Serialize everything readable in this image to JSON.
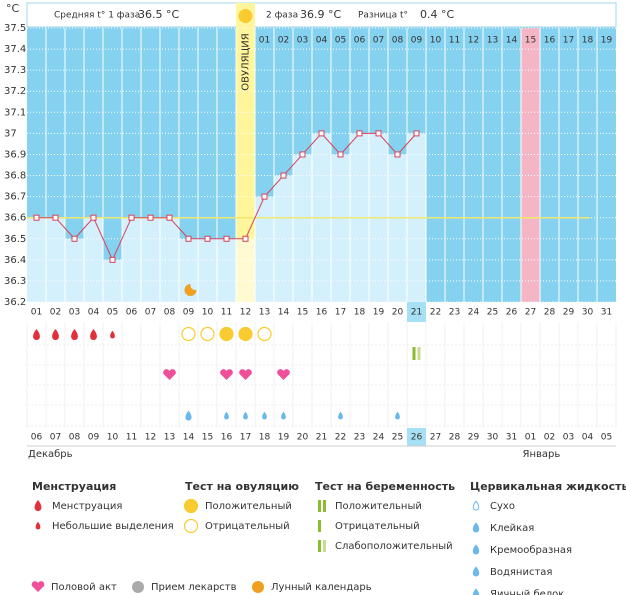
{
  "chart_data": {
    "type": "line",
    "y_unit": "°C",
    "header": {
      "phase1_label": "Средняя t° 1 фаза",
      "phase1_value": "36.5 °C",
      "ovulation_label": "ОВУЛЯЦИЯ",
      "phase2_label": "2 фаза",
      "phase2_value": "36.9 °C",
      "diff_label": "Разница t°",
      "diff_value": "0.4 °C"
    },
    "post_ovulation_days": [
      "01",
      "02",
      "03",
      "04",
      "05",
      "06",
      "07",
      "08",
      "09",
      "10",
      "11",
      "12",
      "13",
      "14",
      "15",
      "16",
      "17",
      "18",
      "19"
    ],
    "categories": [
      "01",
      "02",
      "03",
      "04",
      "05",
      "06",
      "07",
      "08",
      "09",
      "10",
      "11",
      "12",
      "13",
      "14",
      "15",
      "16",
      "17",
      "18",
      "19",
      "20",
      "21",
      "22",
      "23",
      "24",
      "25",
      "26",
      "27",
      "28",
      "29",
      "30",
      "31"
    ],
    "dates": [
      "06",
      "07",
      "08",
      "09",
      "10",
      "11",
      "12",
      "13",
      "14",
      "15",
      "16",
      "17",
      "18",
      "19",
      "20",
      "21",
      "22",
      "23",
      "24",
      "25",
      "26",
      "27",
      "28",
      "29",
      "30",
      "31",
      "01",
      "02",
      "03",
      "04",
      "05"
    ],
    "months": [
      "Декабрь",
      "Январь"
    ],
    "series": [
      {
        "color": "#d8405a",
        "values": [
          36.6,
          36.6,
          36.5,
          36.6,
          36.4,
          36.6,
          36.6,
          36.6,
          36.5,
          36.5,
          36.5,
          36.5,
          36.7,
          36.8,
          36.9,
          37.0,
          36.9,
          37.0,
          37.0,
          36.9,
          37.0,
          null,
          null,
          null,
          null,
          null,
          null,
          null,
          null,
          null,
          null
        ]
      }
    ],
    "coverline": 36.6,
    "ylim": [
      36.2,
      37.5
    ],
    "yticks": [
      36.2,
      36.3,
      36.4,
      36.5,
      36.6,
      36.7,
      36.8,
      36.9,
      37,
      37.1,
      37.2,
      37.3,
      37.4,
      37.5
    ],
    "grid": true
  },
  "legend": {
    "groups": [
      {
        "title": "Менструация",
        "items": [
          "Менструация",
          "Небольшие выделения"
        ]
      },
      {
        "title": "Тест на овуляцию",
        "items": [
          "Положительный",
          "Отрицательный"
        ]
      },
      {
        "title": "Тест на беременность",
        "items": [
          "Положительный",
          "Отрицательный",
          "Слабоположительный"
        ]
      },
      {
        "title": "Цервикальная жидкость",
        "items": [
          "Сухо",
          "Клейкая",
          "Кремообразная",
          "Водянистая",
          "Яичный белок"
        ]
      }
    ],
    "extra": [
      "Половой акт",
      "Прием лекарств",
      "Лунный календарь"
    ]
  }
}
